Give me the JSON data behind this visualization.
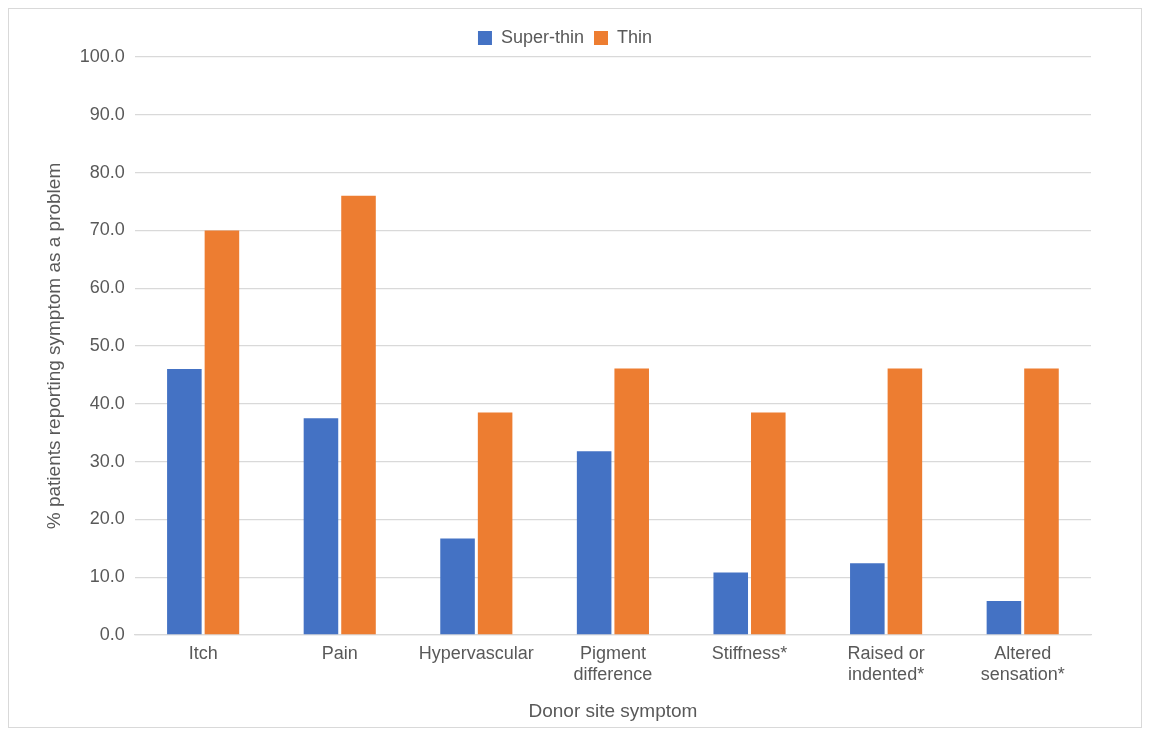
{
  "chart_data": {
    "type": "bar",
    "xlabel": "Donor site symptom",
    "ylabel": "% patients reporting symptom as a problem",
    "categories": [
      "Itch",
      "Pain",
      "Hypervascular",
      "Pigment difference",
      "Stiffness*",
      "Raised or indented*",
      "Altered sensation*"
    ],
    "series": [
      {
        "name": "Super-thin",
        "color": "#4472c4",
        "values": [
          46.0,
          37.5,
          16.7,
          31.8,
          10.8,
          12.4,
          5.9
        ]
      },
      {
        "name": "Thin",
        "color": "#ed7d31",
        "values": [
          70.0,
          76.0,
          38.5,
          46.1,
          38.5,
          46.1,
          46.1
        ]
      }
    ],
    "ylim": [
      0,
      100
    ],
    "yticks": [
      {
        "value": 0,
        "label": "0.0"
      },
      {
        "value": 10,
        "label": "10.0"
      },
      {
        "value": 20,
        "label": "20.0"
      },
      {
        "value": 30,
        "label": "30.0"
      },
      {
        "value": 40,
        "label": "40.0"
      },
      {
        "value": 50,
        "label": "50.0"
      },
      {
        "value": 60,
        "label": "60.0"
      },
      {
        "value": 70,
        "label": "70.0"
      },
      {
        "value": 80,
        "label": "80.0"
      },
      {
        "value": 90,
        "label": "90.0"
      },
      {
        "value": 100,
        "label": "100.0"
      }
    ],
    "grid": "y",
    "legend": "top"
  }
}
